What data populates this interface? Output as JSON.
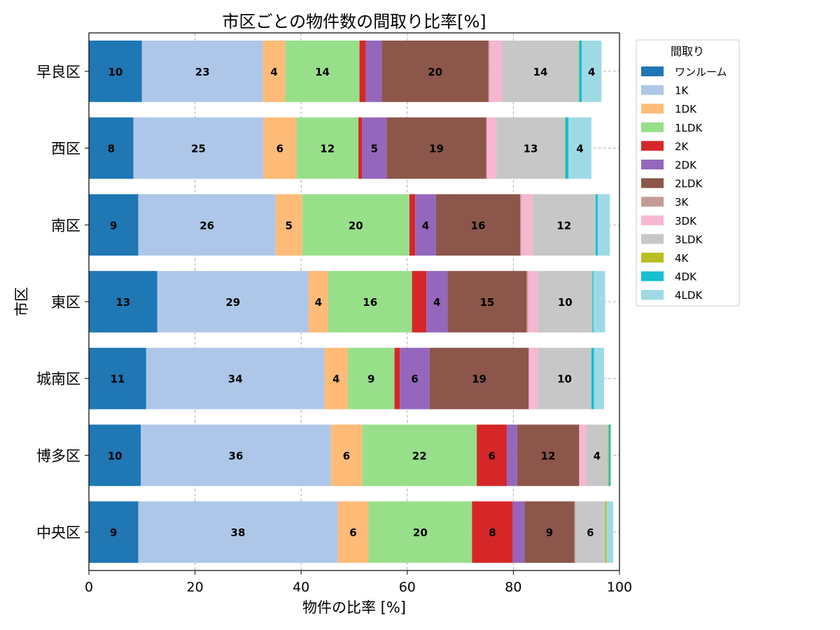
{
  "chart_data": {
    "type": "bar",
    "orientation": "horizontal",
    "stacked": true,
    "title": "市区ごとの物件数の間取り比率[%]",
    "xlabel": "物件の比率 [%]",
    "ylabel": "市区",
    "xlim": [
      0,
      100
    ],
    "xticks": [
      "0",
      "20",
      "40",
      "60",
      "80",
      "100"
    ],
    "grid": true,
    "legend": {
      "title": "間取り",
      "placement": "outside-right"
    },
    "categories": [
      "早良区",
      "西区",
      "南区",
      "東区",
      "城南区",
      "博多区",
      "中央区"
    ],
    "series": [
      {
        "name": "ワンルーム",
        "color": "#1f77b4",
        "values": [
          10.0,
          8.4,
          9.3,
          12.9,
          10.8,
          9.8,
          9.3
        ]
      },
      {
        "name": "1K",
        "color": "#aec7e8",
        "values": [
          22.8,
          24.5,
          25.9,
          28.5,
          33.6,
          35.8,
          37.6
        ]
      },
      {
        "name": "1DK",
        "color": "#ffbb78",
        "values": [
          4.2,
          6.2,
          5.0,
          3.7,
          4.4,
          5.9,
          5.8
        ]
      },
      {
        "name": "1LDK",
        "color": "#98df8a",
        "values": [
          14.0,
          11.7,
          20.2,
          15.8,
          8.8,
          21.6,
          19.5
        ]
      },
      {
        "name": "2K",
        "color": "#d62728",
        "values": [
          1.2,
          0.7,
          1.1,
          2.7,
          1.0,
          5.7,
          7.7
        ]
      },
      {
        "name": "2DK",
        "color": "#9467bd",
        "values": [
          3.0,
          4.6,
          3.9,
          4.0,
          5.6,
          1.9,
          2.2
        ]
      },
      {
        "name": "2LDK",
        "color": "#8c564b",
        "values": [
          20.1,
          18.8,
          15.9,
          14.9,
          18.7,
          11.7,
          9.4
        ]
      },
      {
        "name": "3K",
        "color": "#c49c94",
        "values": [
          0.2,
          0.1,
          0.2,
          0.3,
          0.0,
          0.0,
          0.2
        ]
      },
      {
        "name": "3DK",
        "color": "#f7b6d2",
        "values": [
          2.4,
          1.8,
          2.1,
          1.8,
          1.7,
          1.3,
          0.0
        ]
      },
      {
        "name": "3LDK",
        "color": "#c7c7c7",
        "values": [
          14.4,
          12.9,
          11.9,
          10.3,
          10.1,
          4.1,
          5.6
        ]
      },
      {
        "name": "4K",
        "color": "#bcbd22",
        "values": [
          0.1,
          0.1,
          0.0,
          0.0,
          0.0,
          0.2,
          0.3
        ]
      },
      {
        "name": "4DK",
        "color": "#17becf",
        "values": [
          0.5,
          0.6,
          0.4,
          0.2,
          0.5,
          0.3,
          0.0
        ]
      },
      {
        "name": "4LDK",
        "color": "#9edae5",
        "values": [
          3.7,
          4.3,
          2.3,
          2.2,
          1.9,
          0.1,
          1.2
        ]
      }
    ]
  }
}
